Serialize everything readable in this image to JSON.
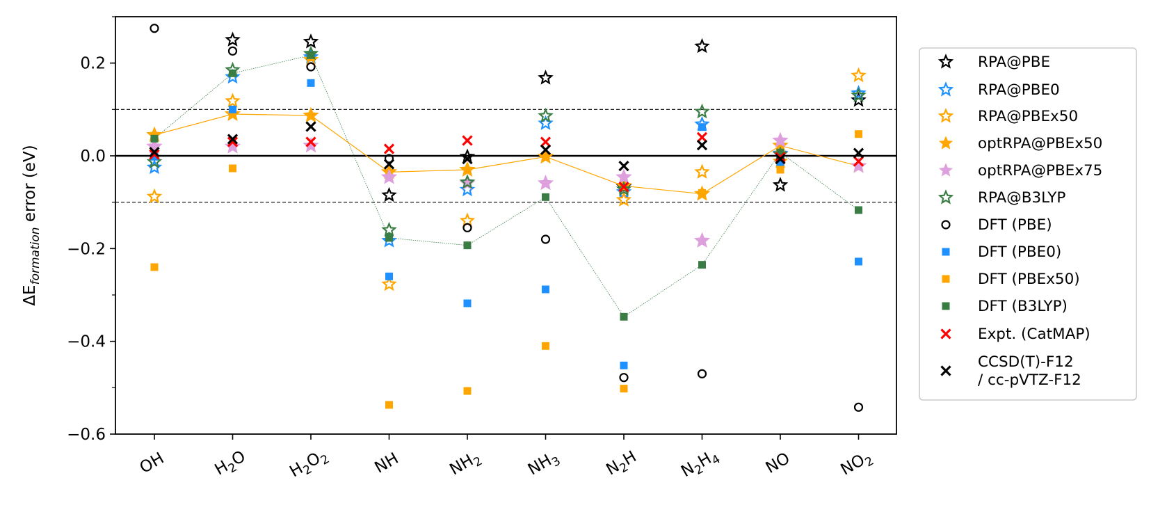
{
  "chart_data": {
    "type": "scatter",
    "title": "",
    "xlabel": "",
    "ylabel": {
      "prefix": "ΔE",
      "subscript": "formation",
      "suffix": " error (eV)"
    },
    "ylim": [
      -0.6,
      0.3
    ],
    "yticks": [
      -0.6,
      -0.4,
      -0.2,
      0.0,
      0.2
    ],
    "ytick_labels": [
      "−0.6",
      "−0.4",
      "−0.2",
      "0.0",
      "0.2"
    ],
    "categories": [
      {
        "base": "OH",
        "sub": ""
      },
      {
        "base": "H",
        "sub": "2",
        "tail": "O"
      },
      {
        "base": "H",
        "sub": "2",
        "tail": "O",
        "sub2": "2"
      },
      {
        "base": "NH",
        "sub": ""
      },
      {
        "base": "NH",
        "sub": "2"
      },
      {
        "base": "NH",
        "sub": "3"
      },
      {
        "base": "N",
        "sub": "2",
        "tail": "H"
      },
      {
        "base": "N",
        "sub": "2",
        "tail": "H",
        "sub2": "4"
      },
      {
        "base": "NO",
        "sub": ""
      },
      {
        "base": "NO",
        "sub": "2"
      }
    ],
    "reference_lines": [
      {
        "y": 0.1,
        "style": "dashed",
        "color": "#000000"
      },
      {
        "y": -0.1,
        "style": "dashed",
        "color": "#000000"
      },
      {
        "y": 0.0,
        "style": "solid",
        "color": "#000000"
      }
    ],
    "legend_position": "outside-right",
    "series": [
      {
        "name": "RPA@PBE",
        "marker": "star-open",
        "color": "#000000",
        "line": false,
        "values": [
          null,
          0.25,
          0.246,
          -0.085,
          -0.002,
          0.168,
          -0.067,
          0.236,
          -0.063,
          0.12
        ]
      },
      {
        "name": "RPA@PBE0",
        "marker": "star-open",
        "color": "#1e90ff",
        "line": false,
        "values": [
          -0.025,
          0.17,
          0.213,
          -0.183,
          -0.073,
          0.07,
          -0.078,
          0.068,
          0.005,
          0.135
        ]
      },
      {
        "name": "RPA@PBEx50",
        "marker": "star-open",
        "color": "#ffa500",
        "line": false,
        "values": [
          -0.088,
          0.118,
          0.207,
          -0.277,
          -0.14,
          -0.002,
          -0.095,
          -0.035,
          -0.012,
          0.173
        ]
      },
      {
        "name": "optRPA@PBEx50",
        "marker": "star-filled",
        "color": "#ffa500",
        "line": true,
        "line_width": 1.2,
        "values": [
          0.045,
          0.09,
          0.087,
          -0.035,
          -0.03,
          -0.002,
          -0.065,
          -0.082,
          0.022,
          -0.022
        ]
      },
      {
        "name": "optRPA@PBEx75",
        "marker": "star-filled",
        "color": "#dda0dd",
        "line": false,
        "values": [
          0.02,
          0.02,
          0.022,
          -0.046,
          -0.059,
          -0.059,
          -0.046,
          -0.183,
          0.033,
          -0.022
        ]
      },
      {
        "name": "RPA@B3LYP",
        "marker": "star-open",
        "color": "#3a7d44",
        "line": false,
        "values": [
          -0.013,
          0.185,
          0.22,
          -0.16,
          -0.057,
          0.086,
          -0.072,
          0.095,
          0.003,
          0.13
        ]
      },
      {
        "name": "DFT (PBE)",
        "marker": "circle-open",
        "color": "#000000",
        "line": false,
        "values": [
          0.275,
          0.226,
          0.192,
          -0.006,
          -0.155,
          -0.18,
          -0.478,
          -0.47,
          -0.012,
          -0.542
        ]
      },
      {
        "name": "DFT (PBE0)",
        "marker": "square",
        "color": "#1e90ff",
        "line": false,
        "values": [
          -0.002,
          0.1,
          0.157,
          -0.26,
          -0.318,
          -0.288,
          -0.452,
          0.062,
          -0.018,
          -0.228
        ]
      },
      {
        "name": "DFT (PBEx50)",
        "marker": "square",
        "color": "#ffa500",
        "line": false,
        "values": [
          -0.24,
          -0.027,
          0.212,
          -0.537,
          -0.507,
          -0.41,
          -0.502,
          -0.08,
          -0.03,
          0.047
        ]
      },
      {
        "name": "DFT (B3LYP)",
        "marker": "square",
        "color": "#3a7d44",
        "line": true,
        "line_style": "dotted",
        "line_width": 0.8,
        "values": [
          0.037,
          0.178,
          0.217,
          -0.177,
          -0.193,
          -0.089,
          -0.347,
          -0.235,
          0.007,
          -0.117
        ]
      },
      {
        "name": "Expt. (CatMAP)",
        "marker": "x",
        "color": "#ff0000",
        "line": false,
        "values": [
          0.003,
          0.03,
          0.03,
          0.015,
          0.033,
          0.03,
          -0.067,
          0.04,
          -0.003,
          -0.012
        ]
      },
      {
        "name": "CCSD(T)-F12 / cc-pVTZ-F12",
        "legend_lines": [
          "CCSD(T)-F12",
          " / cc-pVTZ-F12"
        ],
        "marker": "x",
        "color": "#000000",
        "line": false,
        "values": [
          0.008,
          0.036,
          0.063,
          -0.018,
          -0.007,
          0.013,
          -0.022,
          0.023,
          -0.007,
          0.006
        ]
      }
    ]
  }
}
